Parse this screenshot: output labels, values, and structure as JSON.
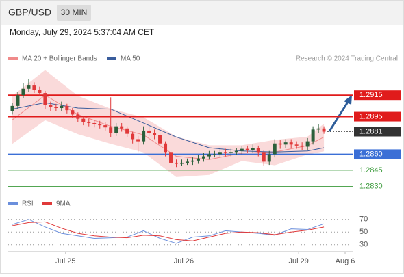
{
  "chart_data": [
    {
      "type": "candlestick",
      "title": "GBP/USD",
      "timeframe": "30 MIN",
      "subtitle": "Monday, July 29, 2024 5:37:04 AM CET",
      "source": "Research © 2024 Trading Central",
      "up_color": "#2b5f3a",
      "down_color": "#e0393a",
      "xlim": [
        -0.75,
        62.25
      ],
      "ylim": [
        1.2822,
        1.294
      ],
      "open": [
        1.29,
        1.2905,
        1.2915,
        1.2921,
        1.2924,
        1.292,
        1.2917,
        1.2906,
        1.2904,
        1.2903,
        1.2905,
        1.2901,
        1.2897,
        1.2893,
        1.289,
        1.2889,
        1.2888,
        1.2887,
        1.2885,
        1.288,
        1.2886,
        1.2884,
        1.2879,
        1.2874,
        1.2872,
        1.2882,
        1.288,
        1.2878,
        1.287,
        1.2862,
        1.2852,
        1.2851,
        1.2852,
        1.2853,
        1.2854,
        1.2856,
        1.2858,
        1.286,
        1.286,
        1.2862,
        1.2861,
        1.2862,
        1.2863,
        1.2865,
        1.2864,
        1.2866,
        1.2862,
        1.2853,
        1.286,
        1.287,
        1.2869,
        1.2871,
        1.2869,
        1.2868,
        1.2867,
        1.2872,
        1.2883,
        1.2884
      ],
      "high": [
        1.2908,
        1.2918,
        1.2926,
        1.293,
        1.2927,
        1.2923,
        1.2919,
        1.2909,
        1.2907,
        1.2909,
        1.2907,
        1.2903,
        1.2899,
        1.2895,
        1.2893,
        1.2892,
        1.2891,
        1.289,
        1.2913,
        1.2889,
        1.2889,
        1.2886,
        1.2881,
        1.2877,
        1.2886,
        1.2885,
        1.2883,
        1.288,
        1.2872,
        1.2864,
        1.2855,
        1.2855,
        1.2856,
        1.2857,
        1.2859,
        1.2861,
        1.2863,
        1.2863,
        1.2865,
        1.2865,
        1.2865,
        1.2866,
        1.2868,
        1.2868,
        1.2869,
        1.2868,
        1.2864,
        1.2863,
        1.2874,
        1.2873,
        1.2874,
        1.2874,
        1.2872,
        1.2871,
        1.2875,
        1.2886,
        1.2888,
        1.2886
      ],
      "low": [
        1.2897,
        1.2902,
        1.2912,
        1.2918,
        1.2917,
        1.2914,
        1.2902,
        1.29,
        1.29,
        1.29,
        1.2898,
        1.2894,
        1.289,
        1.2887,
        1.2886,
        1.2885,
        1.2884,
        1.2882,
        1.2876,
        1.2877,
        1.2881,
        1.2876,
        1.287,
        1.2862,
        1.2869,
        1.2877,
        1.2874,
        1.2866,
        1.2858,
        1.2848,
        1.2848,
        1.2849,
        1.285,
        1.285,
        1.2851,
        1.2853,
        1.2855,
        1.2857,
        1.2857,
        1.2858,
        1.2858,
        1.2859,
        1.286,
        1.2861,
        1.2861,
        1.2858,
        1.2849,
        1.285,
        1.2857,
        1.2865,
        1.2866,
        1.2866,
        1.2865,
        1.2864,
        1.2864,
        1.2869,
        1.288,
        1.2879
      ],
      "close": [
        1.2905,
        1.2915,
        1.2921,
        1.2924,
        1.292,
        1.2917,
        1.2906,
        1.2904,
        1.2903,
        1.2905,
        1.2901,
        1.2897,
        1.2893,
        1.289,
        1.2889,
        1.2888,
        1.2887,
        1.2885,
        1.288,
        1.2886,
        1.2884,
        1.2879,
        1.2874,
        1.2872,
        1.2882,
        1.288,
        1.2878,
        1.287,
        1.2862,
        1.2852,
        1.2851,
        1.2852,
        1.2853,
        1.2854,
        1.2856,
        1.2858,
        1.286,
        1.286,
        1.2862,
        1.2861,
        1.2862,
        1.2863,
        1.2865,
        1.2864,
        1.2866,
        1.2862,
        1.2853,
        1.286,
        1.287,
        1.2869,
        1.2871,
        1.2869,
        1.2868,
        1.2867,
        1.2872,
        1.2883,
        1.2884,
        1.2881
      ],
      "overlays": [
        {
          "name": "MA 20 + Bollinger Bands",
          "color": "#f08a8a",
          "band_color": "#fadada",
          "x": [
            0,
            6,
            12,
            18,
            24,
            30,
            36,
            42,
            48,
            54,
            57
          ],
          "values": [
            1.2892,
            1.2915,
            1.2897,
            1.2886,
            1.2878,
            1.2858,
            1.2855,
            1.2861,
            1.2862,
            1.2868,
            1.2876
          ],
          "upper": [
            1.2914,
            1.2938,
            1.2914,
            1.2902,
            1.2894,
            1.2876,
            1.2868,
            1.2868,
            1.2873,
            1.2876,
            1.2888
          ],
          "lower": [
            1.287,
            1.2892,
            1.2879,
            1.287,
            1.2862,
            1.2839,
            1.2841,
            1.2854,
            1.285,
            1.286,
            1.2863
          ]
        },
        {
          "name": "MA 50",
          "color": "#3a5d9c",
          "x": [
            0,
            6,
            12,
            18,
            24,
            30,
            36,
            42,
            48,
            54,
            57
          ],
          "values": [
            1.2902,
            1.2908,
            1.2903,
            1.2902,
            1.2889,
            1.2876,
            1.2866,
            1.2863,
            1.2862,
            1.2863,
            1.2866
          ]
        }
      ],
      "levels": [
        {
          "value": 1.2915,
          "label": "1.2915",
          "color": "#e01b1b",
          "style": "solid",
          "box": true
        },
        {
          "value": 1.2895,
          "label": "1.2895",
          "color": "#e01b1b",
          "style": "solid",
          "box": true
        },
        {
          "value": 1.2881,
          "label": "1.2881",
          "color": "#333333",
          "style": "dotted",
          "box": true
        },
        {
          "value": 1.286,
          "label": "1.2860",
          "color": "#3b6fd6",
          "style": "solid",
          "box": true
        },
        {
          "value": 1.2845,
          "label": "1.2845",
          "color": "#3a9a3a",
          "style": "thin",
          "box": false
        },
        {
          "value": 1.283,
          "label": "1.2830",
          "color": "#3a9a3a",
          "style": "thin",
          "box": false
        }
      ]
    },
    {
      "type": "line",
      "xlim": [
        -0.75,
        62.25
      ],
      "ylim": [
        20,
        87
      ],
      "yticks": [
        70,
        50,
        30
      ],
      "grid": true,
      "xticks": [
        {
          "value": 9.75,
          "label": "Jul 25"
        },
        {
          "value": 31.375,
          "label": "Jul 26"
        },
        {
          "value": 52.375,
          "label": "Jul 29"
        },
        {
          "value": 60.875,
          "label": "Aug 6"
        }
      ],
      "series": [
        {
          "name": "RSI",
          "color": "#6b8fdc",
          "x": [
            0,
            3,
            6,
            9,
            12,
            15,
            18,
            21,
            24,
            27,
            30,
            33,
            36,
            39,
            42,
            45,
            48,
            51,
            54,
            57
          ],
          "values": [
            62,
            70,
            58,
            48,
            44,
            40,
            41,
            42,
            52,
            40,
            32,
            42,
            44,
            52,
            50,
            48,
            45,
            55,
            54,
            63
          ]
        },
        {
          "name": "9MA",
          "color": "#e0393a",
          "x": [
            0,
            3,
            6,
            9,
            12,
            15,
            18,
            21,
            24,
            27,
            30,
            33,
            36,
            39,
            42,
            45,
            48,
            51,
            54,
            57
          ],
          "values": [
            60,
            65,
            66,
            56,
            48,
            44,
            42,
            41,
            45,
            44,
            38,
            36,
            42,
            48,
            50,
            49,
            46,
            50,
            53,
            58
          ]
        }
      ]
    }
  ]
}
